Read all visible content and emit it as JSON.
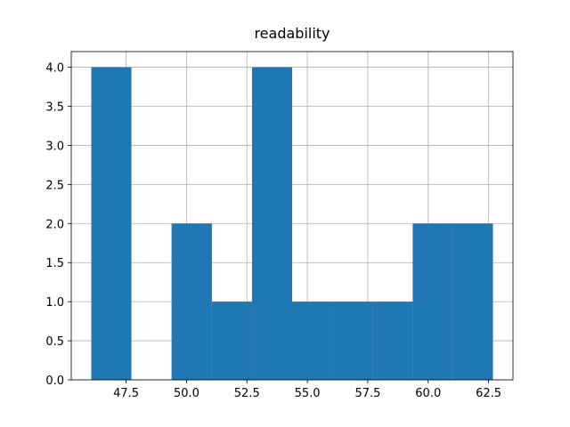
{
  "chart_data": {
    "type": "histogram",
    "title": "readability",
    "bins": [
      46.06,
      47.72,
      49.38,
      51.05,
      52.71,
      54.37,
      56.03,
      57.69,
      59.36,
      61.02,
      62.68
    ],
    "values": [
      4,
      0,
      2,
      1,
      4,
      1,
      1,
      1,
      2,
      2
    ],
    "color": "#1f77b4",
    "xlim": [
      45.23,
      63.51
    ],
    "xticks": [
      47.5,
      {
        "value": 50,
        "label": "50.0"
      },
      52.5,
      {
        "value": 55,
        "label": "55.0"
      },
      57.5,
      {
        "value": 60,
        "label": "60.0"
      },
      62.5
    ],
    "ylim": [
      0,
      4.2
    ],
    "yticks": [
      {
        "value": 0,
        "label": "0.0"
      },
      0.5,
      {
        "value": 1,
        "label": "1.0"
      },
      1.5,
      {
        "value": 2,
        "label": "2.0"
      },
      2.5,
      {
        "value": 3,
        "label": "3.0"
      },
      3.5,
      {
        "value": 4,
        "label": "4.0"
      }
    ],
    "grid": true
  }
}
